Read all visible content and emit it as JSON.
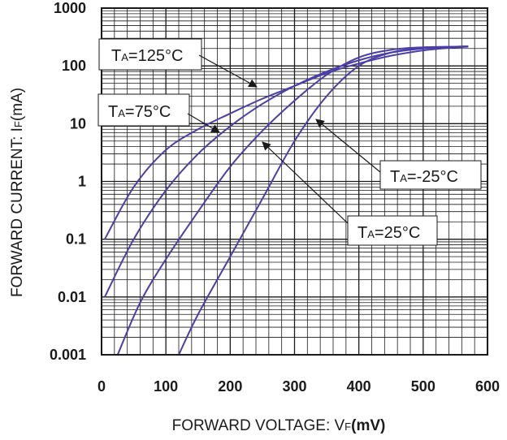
{
  "chart_data": {
    "type": "line",
    "xlabel": {
      "main": "FORWARD VOLTAGE: V",
      "sub": "F",
      "unit": "(mV)"
    },
    "ylabel": {
      "main": "FORWARD CURRENT: I",
      "sub": "F",
      "unit": "(mA)"
    },
    "xlim": [
      0,
      600
    ],
    "ylim": [
      0.001,
      1000
    ],
    "yscale": "log",
    "grid": true,
    "x_ticks": [
      "0",
      "100",
      "200",
      "300",
      "400",
      "500",
      "600"
    ],
    "y_ticks": [
      "0.001",
      "0.01",
      "0.1",
      "1",
      "10",
      "100",
      "1000"
    ],
    "series": [
      {
        "name": "TA=125°C",
        "x": [
          5,
          50,
          100,
          150,
          200,
          250,
          300,
          350,
          400,
          450,
          500,
          540,
          570
        ],
        "y": [
          0.1,
          0.8,
          3.5,
          8,
          15,
          27,
          45,
          75,
          110,
          150,
          185,
          205,
          215
        ]
      },
      {
        "name": "TA=75°C",
        "x": [
          5,
          50,
          100,
          150,
          200,
          250,
          300,
          350,
          400,
          450,
          500,
          540,
          570
        ],
        "y": [
          0.01,
          0.1,
          0.7,
          3,
          9,
          22,
          45,
          80,
          125,
          170,
          200,
          212,
          218
        ]
      },
      {
        "name": "TA=25°C",
        "x": [
          25,
          60,
          100,
          150,
          200,
          250,
          300,
          350,
          400,
          450,
          500,
          550,
          570
        ],
        "y": [
          0.001,
          0.008,
          0.045,
          0.3,
          1.8,
          7.5,
          25,
          70,
          140,
          190,
          210,
          215,
          217
        ]
      },
      {
        "name": "TA=-25°C",
        "x": [
          120,
          150,
          200,
          250,
          300,
          350,
          400,
          450,
          500,
          550,
          570
        ],
        "y": [
          0.001,
          0.005,
          0.05,
          0.5,
          5,
          30,
          100,
          170,
          205,
          215,
          218
        ]
      }
    ],
    "annotations": [
      {
        "text": "T",
        "sub": "A",
        "rest": "=125°C",
        "series": 0
      },
      {
        "text": "T",
        "sub": "A",
        "rest": "=75°C",
        "series": 1
      },
      {
        "text": "T",
        "sub": "A",
        "rest": "=-25°C",
        "series": 3
      },
      {
        "text": "T",
        "sub": "A",
        "rest": "=25°C",
        "series": 2
      }
    ],
    "colors": {
      "curve": "#4a3fa8",
      "grid": "#1a1a1a",
      "frame": "#1a1a1a",
      "arrow": "#1a1a1a"
    }
  }
}
